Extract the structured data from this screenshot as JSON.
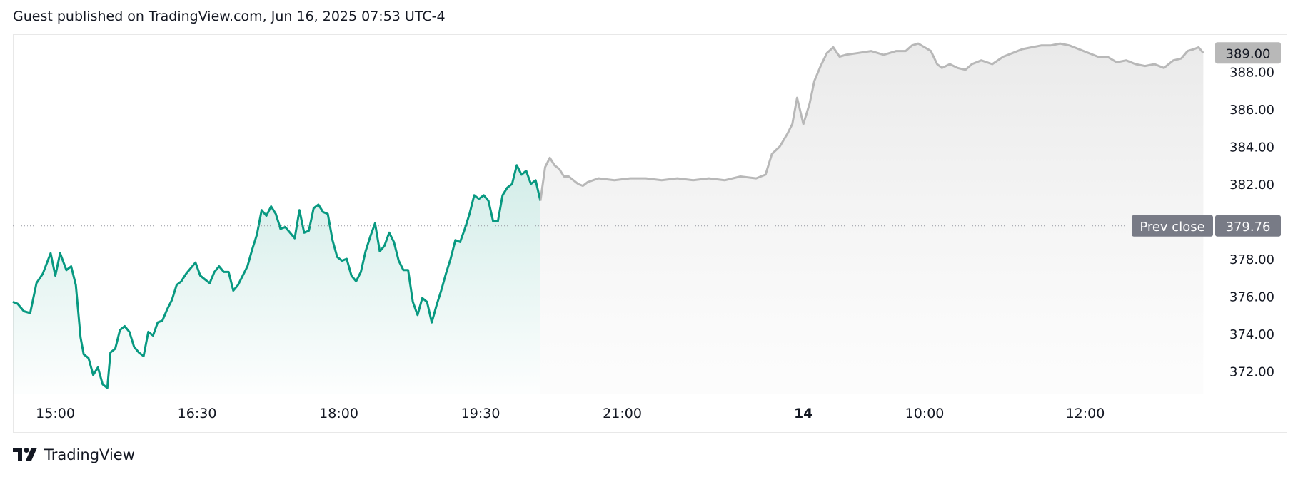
{
  "header": {
    "published_text": "Guest published on TradingView.com, Jun 16, 2025 07:53 UTC-4"
  },
  "footer": {
    "brand": "TradingView",
    "logo_icon": "tradingview-logo-icon"
  },
  "colors": {
    "session_line": "#089981",
    "extended_line": "#b8b8b8",
    "session_fill": "#089981",
    "extended_fill": "#d9d9d9",
    "last_price_badge": "#b8b8b8",
    "prev_close_badge": "#787b86",
    "axis_text": "#131722"
  },
  "chart_data": {
    "type": "area",
    "ylim": [
      370.8,
      390.0
    ],
    "x_ticks": [
      {
        "label": "15:00",
        "t": 5
      },
      {
        "label": "16:30",
        "t": 95
      },
      {
        "label": "18:00",
        "t": 185
      },
      {
        "label": "19:30",
        "t": 275
      },
      {
        "label": "21:00",
        "t": 365
      },
      {
        "label": "14",
        "t": 480,
        "bold": true
      },
      {
        "label": "10:00",
        "t": 557
      },
      {
        "label": "12:00",
        "t": 659
      }
    ],
    "t_range": [
      -22,
      737
    ],
    "y_ticks": [
      "388.00",
      "386.00",
      "384.00",
      "382.00",
      "378.00",
      "376.00",
      "374.00",
      "372.00"
    ],
    "prev_close": {
      "label": "Prev close",
      "value": 379.76,
      "value_text": "379.76"
    },
    "last_price": {
      "value": 389.0,
      "value_text": "389.00"
    },
    "series": [
      {
        "session": "regular",
        "points": [
          [
            -22,
            375.7
          ],
          [
            -19,
            375.6
          ],
          [
            -15,
            375.2
          ],
          [
            -11,
            375.1
          ],
          [
            -7,
            376.7
          ],
          [
            -3,
            377.2
          ],
          [
            2,
            378.3
          ],
          [
            5,
            377.1
          ],
          [
            8,
            378.3
          ],
          [
            12,
            377.4
          ],
          [
            15,
            377.6
          ],
          [
            18,
            376.6
          ],
          [
            21,
            373.8
          ],
          [
            23,
            372.9
          ],
          [
            26,
            372.7
          ],
          [
            29,
            371.8
          ],
          [
            32,
            372.2
          ],
          [
            35,
            371.3
          ],
          [
            38,
            371.1
          ],
          [
            40,
            373.0
          ],
          [
            43,
            373.2
          ],
          [
            46,
            374.2
          ],
          [
            49,
            374.4
          ],
          [
            52,
            374.1
          ],
          [
            55,
            373.3
          ],
          [
            58,
            373.0
          ],
          [
            61,
            372.8
          ],
          [
            64,
            374.1
          ],
          [
            67,
            373.9
          ],
          [
            70,
            374.6
          ],
          [
            73,
            374.7
          ],
          [
            76,
            375.3
          ],
          [
            79,
            375.8
          ],
          [
            82,
            376.6
          ],
          [
            85,
            376.8
          ],
          [
            88,
            377.2
          ],
          [
            91,
            377.5
          ],
          [
            94,
            377.8
          ],
          [
            97,
            377.1
          ],
          [
            100,
            376.9
          ],
          [
            103,
            376.7
          ],
          [
            106,
            377.3
          ],
          [
            109,
            377.6
          ],
          [
            112,
            377.3
          ],
          [
            115,
            377.3
          ],
          [
            118,
            376.3
          ],
          [
            121,
            376.6
          ],
          [
            124,
            377.1
          ],
          [
            127,
            377.6
          ],
          [
            130,
            378.5
          ],
          [
            133,
            379.3
          ],
          [
            136,
            380.6
          ],
          [
            139,
            380.3
          ],
          [
            142,
            380.8
          ],
          [
            145,
            380.4
          ],
          [
            148,
            379.6
          ],
          [
            151,
            379.7
          ],
          [
            154,
            379.4
          ],
          [
            157,
            379.1
          ],
          [
            160,
            380.6
          ],
          [
            163,
            379.4
          ],
          [
            166,
            379.5
          ],
          [
            169,
            380.7
          ],
          [
            172,
            380.9
          ],
          [
            175,
            380.5
          ],
          [
            178,
            380.4
          ],
          [
            181,
            379.0
          ],
          [
            184,
            378.1
          ],
          [
            187,
            377.9
          ],
          [
            190,
            378.0
          ],
          [
            193,
            377.1
          ],
          [
            196,
            376.8
          ],
          [
            199,
            377.3
          ],
          [
            202,
            378.4
          ],
          [
            205,
            379.2
          ],
          [
            208,
            379.9
          ],
          [
            211,
            378.4
          ],
          [
            214,
            378.7
          ],
          [
            217,
            379.4
          ],
          [
            220,
            378.9
          ],
          [
            223,
            377.9
          ],
          [
            226,
            377.4
          ],
          [
            229,
            377.4
          ],
          [
            232,
            375.7
          ],
          [
            235,
            375.0
          ],
          [
            238,
            375.9
          ],
          [
            241,
            375.7
          ],
          [
            244,
            374.6
          ],
          [
            247,
            375.5
          ],
          [
            250,
            376.3
          ],
          [
            253,
            377.2
          ],
          [
            256,
            378.0
          ],
          [
            259,
            379.0
          ],
          [
            262,
            378.9
          ],
          [
            265,
            379.6
          ],
          [
            268,
            380.4
          ],
          [
            271,
            381.4
          ],
          [
            274,
            381.2
          ],
          [
            277,
            381.4
          ],
          [
            280,
            381.1
          ],
          [
            283,
            380.0
          ],
          [
            286,
            380.0
          ],
          [
            289,
            381.4
          ],
          [
            292,
            381.8
          ],
          [
            295,
            382.0
          ],
          [
            298,
            383.0
          ],
          [
            301,
            382.5
          ],
          [
            304,
            382.7
          ],
          [
            307,
            382.0
          ],
          [
            310,
            382.2
          ],
          [
            313,
            381.1
          ]
        ]
      },
      {
        "session": "extended",
        "points": [
          [
            313,
            381.1
          ],
          [
            316,
            382.9
          ],
          [
            319,
            383.4
          ],
          [
            322,
            383.0
          ],
          [
            325,
            382.8
          ],
          [
            328,
            382.4
          ],
          [
            331,
            382.4
          ],
          [
            334,
            382.2
          ],
          [
            337,
            382.0
          ],
          [
            340,
            381.9
          ],
          [
            343,
            382.1
          ],
          [
            350,
            382.3
          ],
          [
            360,
            382.2
          ],
          [
            370,
            382.3
          ],
          [
            380,
            382.3
          ],
          [
            390,
            382.2
          ],
          [
            400,
            382.3
          ],
          [
            410,
            382.2
          ],
          [
            420,
            382.3
          ],
          [
            430,
            382.2
          ],
          [
            440,
            382.4
          ],
          [
            450,
            382.3
          ],
          [
            456,
            382.5
          ],
          [
            460,
            383.6
          ],
          [
            465,
            384.0
          ],
          [
            470,
            384.7
          ],
          [
            473,
            385.2
          ],
          [
            476,
            386.6
          ],
          [
            480,
            385.2
          ],
          [
            484,
            386.3
          ],
          [
            487,
            387.5
          ],
          [
            491,
            388.3
          ],
          [
            495,
            389.0
          ],
          [
            499,
            389.3
          ],
          [
            503,
            388.8
          ],
          [
            507,
            388.9
          ],
          [
            515,
            389.0
          ],
          [
            523,
            389.1
          ],
          [
            531,
            388.9
          ],
          [
            539,
            389.1
          ],
          [
            545,
            389.1
          ],
          [
            549,
            389.4
          ],
          [
            553,
            389.5
          ],
          [
            557,
            389.3
          ],
          [
            561,
            389.1
          ],
          [
            565,
            388.4
          ],
          [
            568,
            388.2
          ],
          [
            573,
            388.4
          ],
          [
            578,
            388.2
          ],
          [
            583,
            388.1
          ],
          [
            587,
            388.4
          ],
          [
            593,
            388.6
          ],
          [
            600,
            388.4
          ],
          [
            607,
            388.8
          ],
          [
            613,
            389.0
          ],
          [
            619,
            389.2
          ],
          [
            625,
            389.3
          ],
          [
            631,
            389.4
          ],
          [
            637,
            389.4
          ],
          [
            643,
            389.5
          ],
          [
            649,
            389.4
          ],
          [
            655,
            389.2
          ],
          [
            661,
            389.0
          ],
          [
            667,
            388.8
          ],
          [
            673,
            388.8
          ],
          [
            679,
            388.5
          ],
          [
            685,
            388.6
          ],
          [
            691,
            388.4
          ],
          [
            697,
            388.3
          ],
          [
            703,
            388.4
          ],
          [
            709,
            388.2
          ],
          [
            715,
            388.6
          ],
          [
            720,
            388.7
          ],
          [
            724,
            389.1
          ],
          [
            728,
            389.2
          ],
          [
            731,
            389.3
          ],
          [
            734,
            389.0
          ]
        ]
      }
    ]
  }
}
